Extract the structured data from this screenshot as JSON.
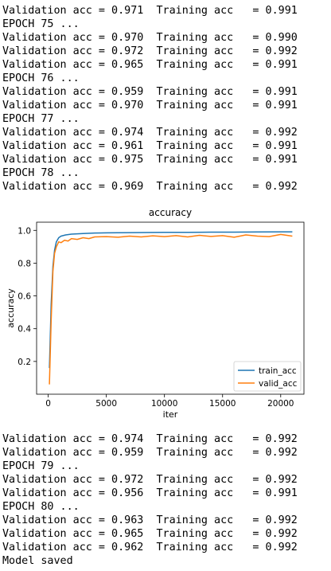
{
  "output_top": [
    "Validation acc = 0.971  Training acc   = 0.991",
    "EPOCH 75 ...",
    "Validation acc = 0.970  Training acc   = 0.990",
    "Validation acc = 0.972  Training acc   = 0.992",
    "Validation acc = 0.965  Training acc   = 0.991",
    "EPOCH 76 ...",
    "Validation acc = 0.959  Training acc   = 0.991",
    "Validation acc = 0.970  Training acc   = 0.991",
    "EPOCH 77 ...",
    "Validation acc = 0.974  Training acc   = 0.992",
    "Validation acc = 0.961  Training acc   = 0.991",
    "Validation acc = 0.975  Training acc   = 0.991",
    "EPOCH 78 ...",
    "Validation acc = 0.969  Training acc   = 0.992"
  ],
  "output_bottom": [
    "Validation acc = 0.974  Training acc   = 0.992",
    "Validation acc = 0.959  Training acc   = 0.992",
    "EPOCH 79 ...",
    "Validation acc = 0.972  Training acc   = 0.992",
    "Validation acc = 0.956  Training acc   = 0.991",
    "EPOCH 80 ...",
    "Validation acc = 0.963  Training acc   = 0.992",
    "Validation acc = 0.965  Training acc   = 0.992",
    "Validation acc = 0.962  Training acc   = 0.992",
    "Model saved"
  ],
  "chart_data": {
    "type": "line",
    "title": "accuracy",
    "xlabel": "iter",
    "ylabel": "accuracy",
    "xlim": [
      -1000,
      22000
    ],
    "ylim": [
      0.0,
      1.05
    ],
    "xticks": [
      0,
      5000,
      10000,
      15000,
      20000
    ],
    "xtick_labels": [
      "0",
      "5000",
      "10000",
      "15000",
      "20000"
    ],
    "yticks": [
      0.2,
      0.4,
      0.6,
      0.8,
      1.0
    ],
    "ytick_labels": [
      "0.2",
      "0.4",
      "0.6",
      "0.8",
      "1.0"
    ],
    "grid": false,
    "legend": "bottom-right",
    "series": [
      {
        "name": "train_acc",
        "color": "#1f77b4",
        "x": [
          100,
          250,
          400,
          550,
          700,
          900,
          1100,
          1500,
          2000,
          3000,
          4000,
          5000,
          6000,
          8000,
          10000,
          12000,
          14000,
          16000,
          18000,
          20000,
          21000
        ],
        "y": [
          0.16,
          0.55,
          0.78,
          0.88,
          0.93,
          0.955,
          0.965,
          0.972,
          0.977,
          0.981,
          0.984,
          0.985,
          0.986,
          0.987,
          0.988,
          0.988,
          0.989,
          0.989,
          0.99,
          0.991,
          0.991
        ]
      },
      {
        "name": "valid_acc",
        "color": "#ff7f0e",
        "x": [
          100,
          250,
          400,
          550,
          700,
          900,
          1100,
          1400,
          1700,
          2000,
          2500,
          3000,
          3500,
          4000,
          5000,
          6000,
          7000,
          8000,
          9000,
          10000,
          11000,
          12000,
          13000,
          14000,
          15000,
          16000,
          17000,
          18000,
          19000,
          20000,
          21000
        ],
        "y": [
          0.06,
          0.45,
          0.75,
          0.86,
          0.9,
          0.93,
          0.925,
          0.94,
          0.935,
          0.95,
          0.945,
          0.955,
          0.95,
          0.96,
          0.962,
          0.958,
          0.965,
          0.96,
          0.967,
          0.962,
          0.968,
          0.96,
          0.97,
          0.963,
          0.968,
          0.958,
          0.972,
          0.965,
          0.962,
          0.975,
          0.965
        ]
      }
    ]
  }
}
